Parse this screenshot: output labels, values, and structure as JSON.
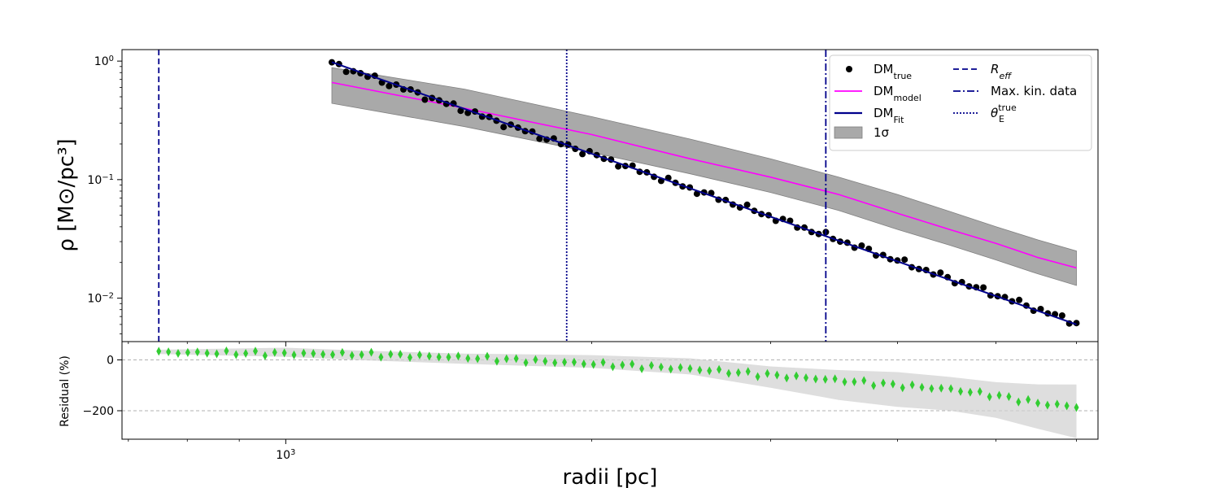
{
  "chart_data": [
    {
      "type": "scatter",
      "panel": "top",
      "ylabel": "ρ [M⊙/pc³]",
      "yscale": "log",
      "xscale": "log",
      "xlim": [
        690,
        6300
      ],
      "ylim": [
        0.0043,
        1.25
      ],
      "yticks": [
        {
          "value": 1.0,
          "base": "10",
          "exp": "0"
        },
        {
          "value": 0.1,
          "base": "10",
          "exp": "−1"
        },
        {
          "value": 0.01,
          "base": "10",
          "exp": "−2"
        }
      ],
      "series": [
        {
          "name": "DM",
          "subscript": "true",
          "kind": "scatter",
          "color": "#000000",
          "x_range": [
            1110,
            6000
          ],
          "n_points": 105,
          "y_start": 0.95,
          "y_end": 0.0062
        },
        {
          "name": "DM",
          "subscript": "model",
          "kind": "line",
          "color": "#ff00ff",
          "x": [
            1110,
            1500,
            2000,
            2500,
            3000,
            3500,
            4000,
            4500,
            5000,
            5500,
            6000
          ],
          "y": [
            0.66,
            0.4,
            0.24,
            0.15,
            0.105,
            0.075,
            0.052,
            0.038,
            0.029,
            0.022,
            0.018
          ]
        },
        {
          "name": "DM",
          "subscript": "Fit",
          "kind": "line",
          "color": "#00008b",
          "x": [
            1110,
            6000
          ],
          "y": [
            0.98,
            0.006
          ]
        },
        {
          "name": "1σ",
          "kind": "band",
          "color": "#a9a9a9",
          "x": [
            1110,
            1500,
            2000,
            2500,
            3000,
            3500,
            4000,
            4500,
            5000,
            5500,
            6000
          ],
          "y_lower": [
            0.44,
            0.28,
            0.17,
            0.112,
            0.078,
            0.055,
            0.038,
            0.028,
            0.021,
            0.016,
            0.0128
          ],
          "y_upper": [
            0.88,
            0.58,
            0.34,
            0.22,
            0.15,
            0.105,
            0.075,
            0.054,
            0.04,
            0.031,
            0.025
          ]
        }
      ],
      "vlines": [
        {
          "name": "R",
          "subscript": "eff",
          "style": "dashed",
          "x": 750,
          "color": "#00008b"
        },
        {
          "name": "Max. kin. data",
          "style": "dashdot",
          "x": 3400,
          "color": "#00008b"
        },
        {
          "name": "θ",
          "subscript": "E",
          "superscript": "true",
          "style": "dotted",
          "x": 1890,
          "color": "#00008b"
        }
      ],
      "legend": "top-right"
    },
    {
      "type": "scatter",
      "panel": "bottom",
      "ylabel": "Residual (%)",
      "xlabel": "radii [pc]",
      "xscale": "log",
      "xlim": [
        690,
        6300
      ],
      "ylim": [
        -312,
        72
      ],
      "yticks": [
        0,
        -200
      ],
      "xticks": [
        {
          "value": 1000,
          "base": "10",
          "exp": "3"
        }
      ],
      "grid": "y-dashed",
      "series": [
        {
          "name": "Residual",
          "kind": "scatter",
          "marker": "diamond",
          "color": "#32cd32",
          "x_range": [
            750,
            6000
          ],
          "n_points": 96,
          "anchors_x": [
            750,
            1000,
            1200,
            1500,
            2000,
            2500,
            3000,
            3500,
            4000,
            4500,
            5000,
            5500,
            6000
          ],
          "anchors_y": [
            30,
            25,
            22,
            10,
            -15,
            -35,
            -60,
            -80,
            -100,
            -115,
            -140,
            -170,
            -185
          ]
        },
        {
          "name": "Residual band",
          "kind": "band",
          "color": "#d3d3d3",
          "x": [
            750,
            1000,
            1200,
            1500,
            2000,
            2500,
            3000,
            3500,
            4000,
            4500,
            5000,
            5500,
            6000
          ],
          "y_lower": [
            15,
            10,
            5,
            -10,
            -35,
            -65,
            -110,
            -150,
            -180,
            -205,
            -235,
            -270,
            -300
          ],
          "y_upper": [
            40,
            40,
            38,
            32,
            15,
            0,
            -20,
            -35,
            -55,
            -70,
            -80,
            -95,
            -105
          ]
        }
      ]
    }
  ]
}
